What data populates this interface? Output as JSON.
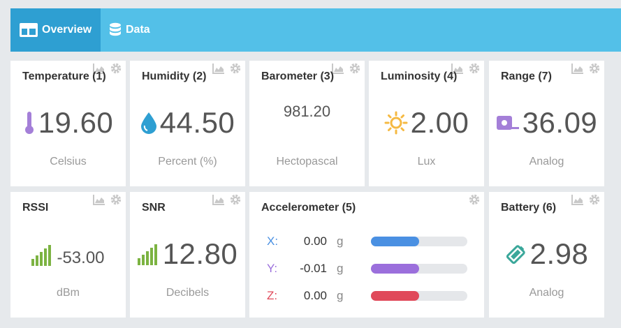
{
  "nav": {
    "tabs": [
      {
        "label": "Overview",
        "active": true,
        "icon": "dashboard-icon"
      },
      {
        "label": "Data",
        "active": false,
        "icon": "database-icon"
      }
    ],
    "color": "#53c0e8",
    "active_color": "#2e9fd2"
  },
  "cards": {
    "temperature": {
      "title": "Temperature (1)",
      "value": "19.60",
      "unit": "Celsius",
      "icon": "thermometer-icon"
    },
    "humidity": {
      "title": "Humidity (2)",
      "value": "44.50",
      "unit": "Percent (%)",
      "icon": "water-drop-icon"
    },
    "barometer": {
      "title": "Barometer (3)",
      "value": "981.20",
      "unit": "Hectopascal"
    },
    "luminosity": {
      "title": "Luminosity (4)",
      "value": "2.00",
      "unit": "Lux",
      "icon": "sun-icon"
    },
    "range": {
      "title": "Range (7)",
      "value": "36.09",
      "unit": "Analog",
      "icon": "tape-measure-icon"
    },
    "rssi": {
      "title": "RSSI",
      "value": "-53.00",
      "unit": "dBm",
      "icon": "signal-bars-icon"
    },
    "snr": {
      "title": "SNR",
      "value": "12.80",
      "unit": "Decibels",
      "icon": "signal-bars-icon"
    },
    "accelerometer": {
      "title": "Accelerometer (5)",
      "axes": [
        {
          "axis": "X:",
          "value": "0.00",
          "unit": "g",
          "color": "#4a90e2",
          "fill": 0.5
        },
        {
          "axis": "Y:",
          "value": "-0.01",
          "unit": "g",
          "color": "#9b6fdc",
          "fill": 0.5
        },
        {
          "axis": "Z:",
          "value": "0.00",
          "unit": "g",
          "color": "#e0495a",
          "fill": 0.5
        }
      ]
    },
    "battery": {
      "title": "Battery (6)",
      "value": "2.98",
      "unit": "Analog",
      "icon": "battery-icon"
    }
  }
}
